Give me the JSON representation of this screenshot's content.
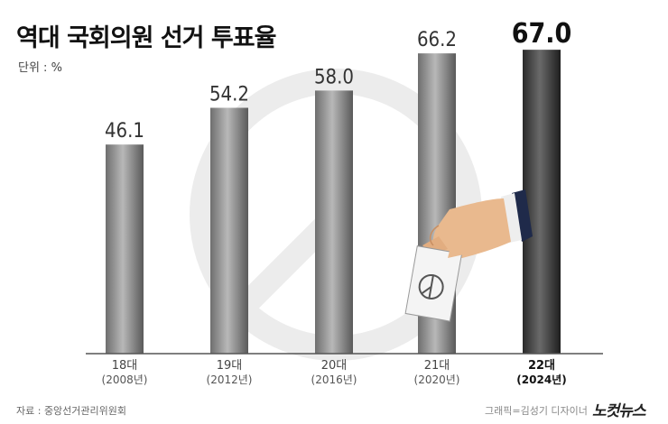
{
  "header": {
    "title": "역대 국회의원 선거 투표율",
    "unit": "단위 : %"
  },
  "footer": {
    "source": "자료 : 중앙선거관리위원회",
    "credit": "그래픽=김성기 디자이너",
    "logo": "노컷뉴스"
  },
  "chart_data": {
    "type": "bar",
    "categories": [
      "18대",
      "19대",
      "20대",
      "21대",
      "22대"
    ],
    "sub_labels": [
      "(2008년)",
      "(2012년)",
      "(2016년)",
      "(2020년)",
      "(2024년)"
    ],
    "values": [
      46.1,
      54.2,
      58.0,
      66.2,
      67.0
    ],
    "value_labels": [
      "46.1",
      "54.2",
      "58.0",
      "66.2",
      "67.0"
    ],
    "highlight_index": 4,
    "ylim": [
      0,
      72
    ],
    "grid": false,
    "legend": "none",
    "colors": {
      "bar_light": "#9a9a9a",
      "bar_dark": "#3a3a3a",
      "highlight": "#111111"
    }
  }
}
